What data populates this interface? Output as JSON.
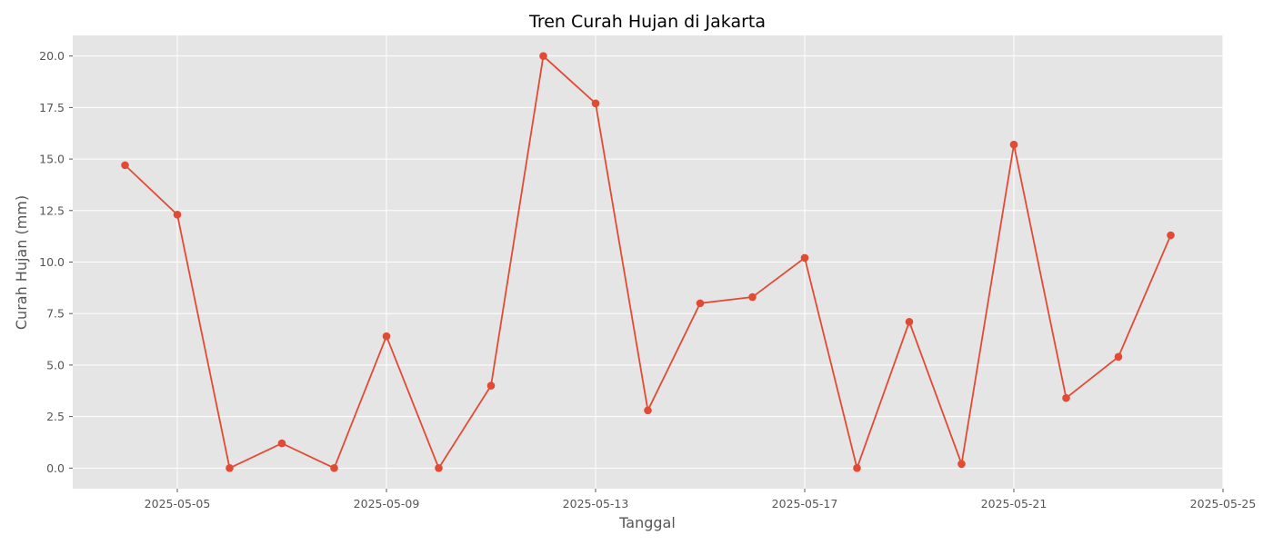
{
  "chart_data": {
    "type": "line",
    "title": "Tren Curah Hujan di Jakarta",
    "xlabel": "Tanggal",
    "ylabel": "Curah Hujan (mm)",
    "x": [
      "2025-05-04",
      "2025-05-05",
      "2025-05-06",
      "2025-05-07",
      "2025-05-08",
      "2025-05-09",
      "2025-05-10",
      "2025-05-11",
      "2025-05-12",
      "2025-05-13",
      "2025-05-14",
      "2025-05-15",
      "2025-05-16",
      "2025-05-17",
      "2025-05-18",
      "2025-05-19",
      "2025-05-20",
      "2025-05-21",
      "2025-05-22",
      "2025-05-23",
      "2025-05-24"
    ],
    "series": [
      {
        "color": "#e24a33",
        "values": [
          14.7,
          12.3,
          0.0,
          1.2,
          0.0,
          6.4,
          0.0,
          4.0,
          20.0,
          17.7,
          2.8,
          8.0,
          8.3,
          10.2,
          0.0,
          7.1,
          0.2,
          15.7,
          3.4,
          5.4,
          11.3
        ]
      }
    ],
    "xlim": [
      "2025-05-03",
      "2025-05-25"
    ],
    "ylim": [
      -1.0,
      21.0
    ],
    "x_ticks": [
      "2025-05-05",
      "2025-05-09",
      "2025-05-13",
      "2025-05-17",
      "2025-05-21",
      "2025-05-25"
    ],
    "y_ticks": [
      0.0,
      2.5,
      5.0,
      7.5,
      10.0,
      12.5,
      15.0,
      17.5,
      20.0
    ],
    "y_tick_labels": [
      "0.0",
      "2.5",
      "5.0",
      "7.5",
      "10.0",
      "12.5",
      "15.0",
      "17.5",
      "20.0"
    ],
    "grid": true,
    "legend": "none"
  }
}
